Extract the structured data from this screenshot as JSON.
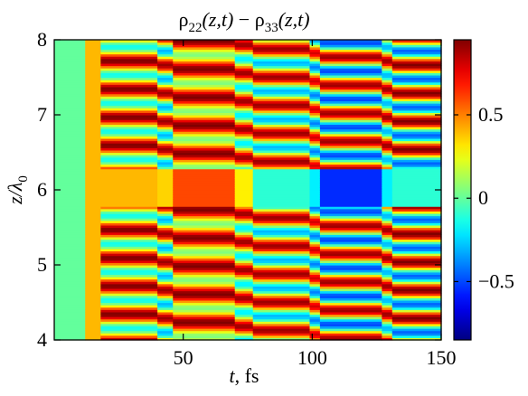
{
  "chart_data": {
    "type": "heatmap",
    "title": "ρ22(z,t) − ρ33(z,t)",
    "title_parts": {
      "rho": "ρ",
      "sub_a": "22",
      "args_a": "(z,t)",
      "minus": " − ",
      "sub_b": "33",
      "args_b": "(z,t)"
    },
    "xlabel": "t, fs",
    "xlabel_parts": {
      "var": "t",
      "unit": ", fs"
    },
    "ylabel": "z/λ0",
    "ylabel_parts": {
      "var": "z/λ",
      "sub": "0"
    },
    "xlim": [
      0,
      150
    ],
    "ylim": [
      4,
      8
    ],
    "x_ticks": [
      "50",
      "100",
      "150"
    ],
    "x_tick_values": [
      50,
      100,
      150
    ],
    "y_ticks": [
      "4",
      "5",
      "6",
      "7",
      "8"
    ],
    "y_tick_values": [
      4,
      5,
      6,
      7,
      8
    ],
    "colorbar": {
      "range": [
        -0.85,
        0.95
      ],
      "ticks": [
        "0.5",
        "0",
        "−0.5"
      ],
      "tick_values": [
        0.5,
        0,
        -0.5
      ],
      "colormap": "jet"
    },
    "time_segments": [
      {
        "t0": 0,
        "t1": 12,
        "mode": "uniform",
        "base": 0.0
      },
      {
        "t0": 12,
        "t1": 18,
        "mode": "uniform",
        "base": 0.4
      },
      {
        "t0": 18,
        "t1": 40,
        "mode": "striped",
        "center": 0.4,
        "amp": 0.55
      },
      {
        "t0": 40,
        "t1": 46,
        "mode": "striped",
        "center": 0.3,
        "amp": 0.6
      },
      {
        "t0": 46,
        "t1": 70,
        "mode": "striped",
        "center": 0.5,
        "amp": 0.45
      },
      {
        "t0": 70,
        "t1": 77,
        "mode": "striped",
        "center": 0.35,
        "amp": 0.55
      },
      {
        "t0": 77,
        "t1": 99,
        "mode": "striped",
        "center": 0.3,
        "amp": 0.6
      },
      {
        "t0": 99,
        "t1": 103,
        "mode": "striped",
        "center": 0.2,
        "amp": 0.6
      },
      {
        "t0": 103,
        "t1": 127,
        "mode": "striped",
        "center": 0.2,
        "amp": 0.7
      },
      {
        "t0": 127,
        "t1": 131,
        "mode": "striped",
        "center": 0.3,
        "amp": 0.6
      },
      {
        "t0": 131,
        "t1": 150,
        "mode": "striped",
        "center": 0.25,
        "amp": 0.7
      }
    ],
    "central_band": {
      "z_range": [
        5.78,
        6.28
      ],
      "values_by_segment": [
        0.0,
        0.4,
        0.4,
        0.35,
        0.6,
        0.3,
        -0.1,
        -0.2,
        -0.55,
        -0.2,
        -0.1
      ]
    },
    "stripe_period_z": 0.375
  }
}
